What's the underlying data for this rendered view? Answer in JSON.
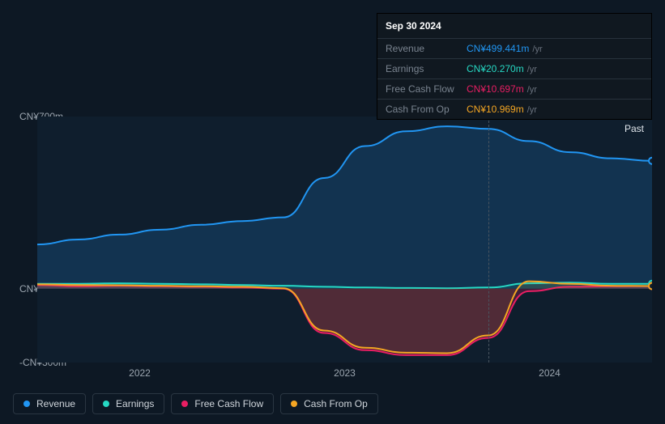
{
  "tooltip": {
    "date": "Sep 30 2024",
    "rows": [
      {
        "label": "Revenue",
        "value": "CN¥499.441m",
        "unit": "/yr",
        "color": "#2196f3"
      },
      {
        "label": "Earnings",
        "value": "CN¥20.270m",
        "unit": "/yr",
        "color": "#26d9c4"
      },
      {
        "label": "Free Cash Flow",
        "value": "CN¥10.697m",
        "unit": "/yr",
        "color": "#e91e63"
      },
      {
        "label": "Cash From Op",
        "value": "CN¥10.969m",
        "unit": "/yr",
        "color": "#f5a623"
      }
    ]
  },
  "chart": {
    "type": "area",
    "background": "#0f1e2d",
    "past_label": "Past",
    "y_labels": [
      {
        "text": "CN¥700m",
        "value": 700
      },
      {
        "text": "CN¥0",
        "value": 0
      },
      {
        "text": "-CN¥300m",
        "value": -300
      }
    ],
    "y_min": -300,
    "y_max": 700,
    "x_labels": [
      "2022",
      "2023",
      "2024"
    ],
    "x_count": 16,
    "marker_index": 11,
    "series": [
      {
        "name": "Revenue",
        "color": "#2196f3",
        "fill_opacity": 0.18,
        "data": [
          180,
          200,
          220,
          240,
          260,
          275,
          290,
          450,
          580,
          640,
          660,
          650,
          600,
          555,
          530,
          520
        ]
      },
      {
        "name": "Earnings",
        "color": "#26d9c4",
        "fill_opacity": 0.1,
        "data": [
          20,
          20,
          22,
          20,
          18,
          15,
          12,
          8,
          5,
          3,
          2,
          5,
          22,
          25,
          20,
          20
        ]
      },
      {
        "name": "Free Cash Flow",
        "color": "#e91e63",
        "fill_opacity": 0.22,
        "data": [
          15,
          10,
          12,
          10,
          8,
          5,
          0,
          -180,
          -250,
          -270,
          -270,
          -200,
          -10,
          8,
          10,
          11
        ]
      },
      {
        "name": "Cash From Op",
        "color": "#f5a623",
        "fill_opacity": 0.1,
        "data": [
          18,
          15,
          14,
          12,
          10,
          8,
          2,
          -170,
          -240,
          -260,
          -262,
          -190,
          30,
          20,
          12,
          11
        ]
      }
    ]
  },
  "legend": [
    {
      "label": "Revenue",
      "color": "#2196f3"
    },
    {
      "label": "Earnings",
      "color": "#26d9c4"
    },
    {
      "label": "Free Cash Flow",
      "color": "#e91e63"
    },
    {
      "label": "Cash From Op",
      "color": "#f5a623"
    }
  ]
}
